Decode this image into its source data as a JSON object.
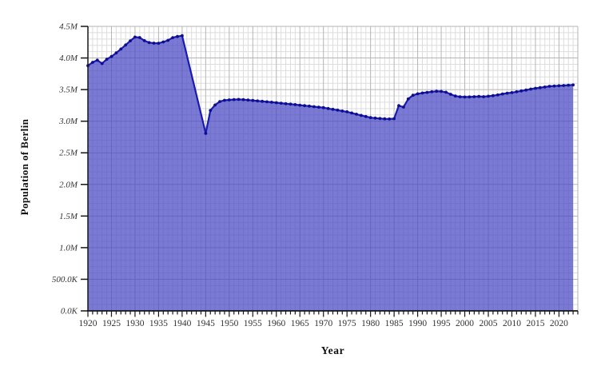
{
  "chart_data": {
    "type": "area",
    "title": "",
    "xlabel": "Year",
    "ylabel": "Population of Berlin",
    "x_domain": [
      1920,
      2024
    ],
    "ylim": [
      0,
      4500000
    ],
    "y_major_interval": 500000,
    "y_minor_interval": 100000,
    "x_major_interval": 5,
    "x_minor_interval": 1,
    "grid": true,
    "legend": "none",
    "y_ticks": [
      {
        "value": 0,
        "label": "0.0K"
      },
      {
        "value": 500000,
        "label": "500.0K"
      },
      {
        "value": 1000000,
        "label": "1.0M"
      },
      {
        "value": 1500000,
        "label": "1.5M"
      },
      {
        "value": 2000000,
        "label": "2.0M"
      },
      {
        "value": 2500000,
        "label": "2.5M"
      },
      {
        "value": 3000000,
        "label": "3.0M"
      },
      {
        "value": 3500000,
        "label": "3.5M"
      },
      {
        "value": 4000000,
        "label": "4.0M"
      },
      {
        "value": 4500000,
        "label": "4.5M"
      }
    ],
    "x_ticks": [
      {
        "value": 1920,
        "label": "1920"
      },
      {
        "value": 1925,
        "label": "1925"
      },
      {
        "value": 1930,
        "label": "1930"
      },
      {
        "value": 1935,
        "label": "1935"
      },
      {
        "value": 1940,
        "label": "1940"
      },
      {
        "value": 1945,
        "label": "1945"
      },
      {
        "value": 1950,
        "label": "1950"
      },
      {
        "value": 1955,
        "label": "1955"
      },
      {
        "value": 1960,
        "label": "1960"
      },
      {
        "value": 1965,
        "label": "1965"
      },
      {
        "value": 1970,
        "label": "1970"
      },
      {
        "value": 1975,
        "label": "1975"
      },
      {
        "value": 1980,
        "label": "1980"
      },
      {
        "value": 1985,
        "label": "1985"
      },
      {
        "value": 1990,
        "label": "1990"
      },
      {
        "value": 1995,
        "label": "1995"
      },
      {
        "value": 2000,
        "label": "2000"
      },
      {
        "value": 2005,
        "label": "2005"
      },
      {
        "value": 2010,
        "label": "2010"
      },
      {
        "value": 2015,
        "label": "2015"
      },
      {
        "value": 2020,
        "label": "2020"
      }
    ],
    "series": [
      {
        "name": "Population of Berlin",
        "x": [
          1920,
          1921,
          1922,
          1923,
          1924,
          1925,
          1926,
          1927,
          1928,
          1929,
          1930,
          1931,
          1932,
          1933,
          1934,
          1935,
          1936,
          1937,
          1938,
          1939,
          1940,
          1941,
          1942,
          1943,
          1944,
          1945,
          1946,
          1947,
          1948,
          1949,
          1950,
          1951,
          1952,
          1953,
          1954,
          1955,
          1956,
          1957,
          1958,
          1959,
          1960,
          1961,
          1962,
          1963,
          1964,
          1965,
          1966,
          1967,
          1968,
          1969,
          1970,
          1971,
          1972,
          1973,
          1974,
          1975,
          1976,
          1977,
          1978,
          1979,
          1980,
          1981,
          1982,
          1983,
          1984,
          1985,
          1986,
          1987,
          1988,
          1989,
          1990,
          1991,
          1992,
          1993,
          1994,
          1995,
          1996,
          1997,
          1998,
          1999,
          2000,
          2001,
          2002,
          2003,
          2004,
          2005,
          2006,
          2007,
          2008,
          2009,
          2010,
          2011,
          2012,
          2013,
          2014,
          2015,
          2016,
          2017,
          2018,
          2019,
          2020,
          2021,
          2022,
          2023
        ],
        "values": [
          3879000,
          3931000,
          3965000,
          3912000,
          3981000,
          4024000,
          4080000,
          4141000,
          4206000,
          4271000,
          4331000,
          4323000,
          4274000,
          4243000,
          4235000,
          4233000,
          4254000,
          4279000,
          4322000,
          4339000,
          4352000,
          4043000,
          3734000,
          3425000,
          3116000,
          2807000,
          3171000,
          3256000,
          3310000,
          3331000,
          3337000,
          3342000,
          3345000,
          3341000,
          3335000,
          3328000,
          3321000,
          3314000,
          3307000,
          3300000,
          3293000,
          3285000,
          3277000,
          3270000,
          3262000,
          3254000,
          3246000,
          3238000,
          3230000,
          3222000,
          3214000,
          3201000,
          3188000,
          3175000,
          3162000,
          3149000,
          3130000,
          3111000,
          3092000,
          3074000,
          3057000,
          3049000,
          3043000,
          3038000,
          3035000,
          3040000,
          3246000,
          3223000,
          3352000,
          3410000,
          3433000,
          3446000,
          3456000,
          3466000,
          3473000,
          3471000,
          3458000,
          3425000,
          3398000,
          3386000,
          3382000,
          3384000,
          3388000,
          3392000,
          3388000,
          3395000,
          3404000,
          3416000,
          3431000,
          3443000,
          3452000,
          3466000,
          3479000,
          3493000,
          3508000,
          3520000,
          3531000,
          3541000,
          3552000,
          3557000,
          3561000,
          3565000,
          3570000,
          3574000
        ],
        "interpolated_years": [
          1941,
          1942,
          1943,
          1944
        ]
      }
    ],
    "colors": {
      "area_fill": "rgba(70,70,196,0.72)",
      "line": "#1a1ab2",
      "dot": "#0d0d8f",
      "grid_minor": "#dddddd",
      "grid_major": "#b5b5b5",
      "axis": "#161616",
      "tick_text": "#333333",
      "title_text": "#111111"
    }
  }
}
